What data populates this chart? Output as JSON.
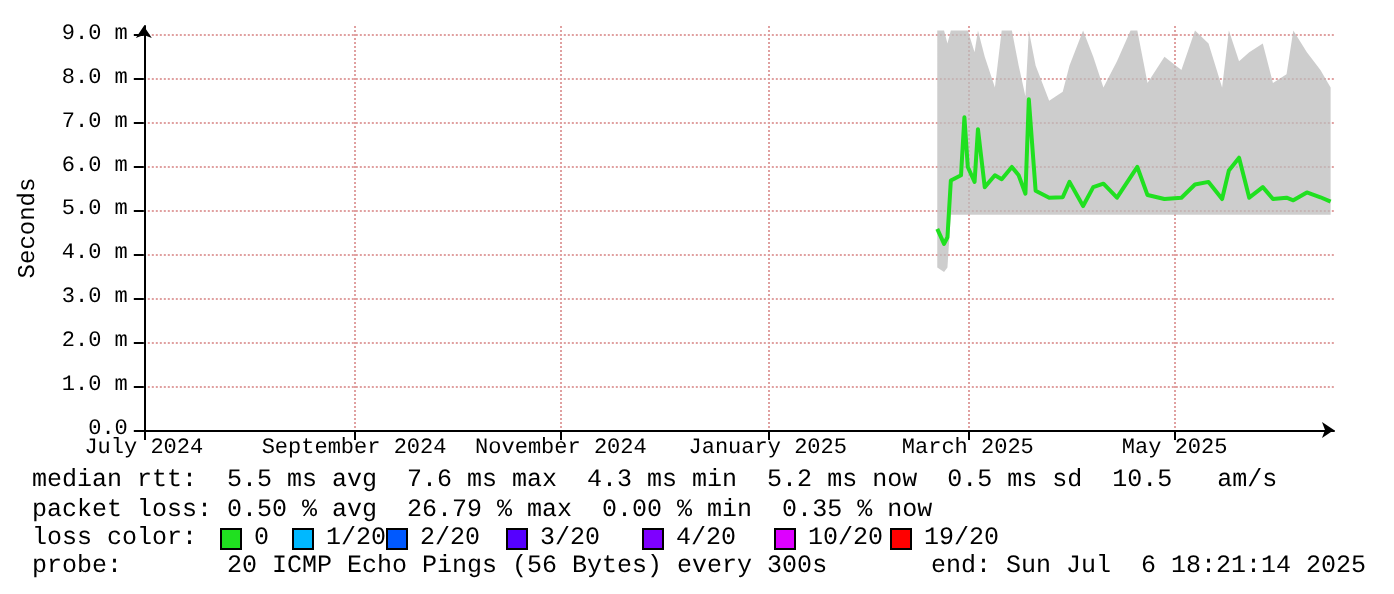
{
  "chart_data": {
    "type": "line",
    "ylabel": "Seconds",
    "xlim": [
      "2024-07-01",
      "2025-06-17"
    ],
    "xticks": [
      {
        "value": "2024-07-01",
        "label": "July 2024"
      },
      {
        "value": "2024-09-01",
        "label": "September 2024"
      },
      {
        "value": "2024-11-01",
        "label": "November 2024"
      },
      {
        "value": "2025-01-01",
        "label": "January 2025"
      },
      {
        "value": "2025-03-01",
        "label": "March 2025"
      },
      {
        "value": "2025-05-01",
        "label": "May 2025"
      }
    ],
    "ylim": [
      0,
      9.2
    ],
    "yticks": [
      {
        "value": 0,
        "label": "0.0"
      },
      {
        "value": 1,
        "label": "1.0 m"
      },
      {
        "value": 2,
        "label": "2.0 m"
      },
      {
        "value": 3,
        "label": "3.0 m"
      },
      {
        "value": 4,
        "label": "4.0 m"
      },
      {
        "value": 5,
        "label": "5.0 m"
      },
      {
        "value": 6,
        "label": "6.0 m"
      },
      {
        "value": 7,
        "label": "7.0 m"
      },
      {
        "value": 8,
        "label": "8.0 m"
      },
      {
        "value": 9,
        "label": "9.0 m"
      }
    ],
    "grid": true,
    "marker": "none",
    "line_style": "solid",
    "x": [
      "2025-02-20",
      "2025-02-22",
      "2025-02-23",
      "2025-02-24",
      "2025-02-27",
      "2025-02-28",
      "2025-03-01",
      "2025-03-03",
      "2025-03-04",
      "2025-03-06",
      "2025-03-09",
      "2025-03-11",
      "2025-03-14",
      "2025-03-16",
      "2025-03-18",
      "2025-03-19",
      "2025-03-21",
      "2025-03-25",
      "2025-03-29",
      "2025-03-31",
      "2025-04-04",
      "2025-04-07",
      "2025-04-10",
      "2025-04-14",
      "2025-04-18",
      "2025-04-20",
      "2025-04-23",
      "2025-04-28",
      "2025-05-03",
      "2025-05-07",
      "2025-05-11",
      "2025-05-15",
      "2025-05-17",
      "2025-05-20",
      "2025-05-23",
      "2025-05-27",
      "2025-05-30",
      "2025-06-03",
      "2025-06-05",
      "2025-06-09",
      "2025-06-13",
      "2025-06-16"
    ],
    "series": [
      {
        "color": "#20e020",
        "values": [
          4.58,
          4.24,
          4.39,
          5.68,
          5.8,
          7.12,
          5.99,
          5.65,
          6.85,
          5.53,
          5.8,
          5.71,
          5.99,
          5.8,
          5.38,
          7.53,
          5.45,
          5.29,
          5.3,
          5.65,
          5.1,
          5.53,
          5.61,
          5.29,
          5.76,
          5.99,
          5.35,
          5.26,
          5.29,
          5.59,
          5.65,
          5.26,
          5.91,
          6.2,
          5.29,
          5.53,
          5.26,
          5.29,
          5.23,
          5.41,
          5.3,
          5.2
        ],
        "lower": [
          3.7,
          3.6,
          3.7,
          4.9,
          4.9,
          4.9,
          4.9,
          4.9,
          4.9,
          4.9,
          4.9,
          4.9,
          4.9,
          4.9,
          4.9,
          4.9,
          4.9,
          4.9,
          4.9,
          4.9,
          4.9,
          4.9,
          4.9,
          4.9,
          4.9,
          4.9,
          4.9,
          4.9,
          4.9,
          4.9,
          4.9,
          4.9,
          4.9,
          4.9,
          4.9,
          4.9,
          4.9,
          4.9,
          4.9,
          4.9,
          4.9,
          4.9
        ],
        "upper": [
          9.1,
          9.1,
          8.8,
          9.1,
          9.1,
          9.1,
          9.1,
          8.6,
          9.1,
          8.5,
          7.8,
          9.1,
          9.1,
          8.3,
          7.6,
          9.1,
          8.3,
          7.5,
          7.7,
          8.3,
          9.1,
          8.5,
          7.8,
          8.4,
          9.1,
          9.1,
          7.9,
          8.5,
          8.2,
          9.1,
          8.8,
          7.8,
          9.1,
          8.4,
          8.6,
          8.8,
          7.9,
          8.1,
          9.1,
          8.6,
          8.2,
          7.8
        ]
      }
    ],
    "annotations": [
      "median rtt:  5.5 ms avg  7.6 ms max  4.3 ms min  5.2 ms now  0.5 ms sd  10.5   am/s",
      "packet loss: 0.50 % avg  26.79 % max  0.00 % min  0.35 % now",
      "loss color:",
      "0",
      "1/20",
      "2/20",
      "3/20",
      "4/20",
      "10/20",
      "19/20",
      "probe:       20 ICMP Echo Pings (56 Bytes) every 300s",
      "end: Sun Jul  6 18:21:14 2025"
    ]
  }
}
